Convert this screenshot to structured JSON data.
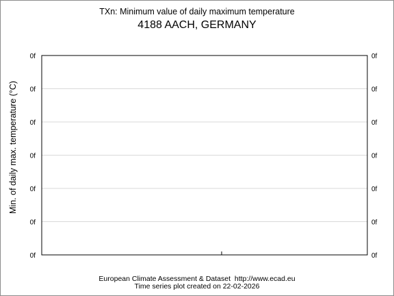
{
  "chart_data": {
    "type": "line",
    "title": "TXn: Minimum value of daily maximum temperature",
    "subtitle": "4188 AACH, GERMANY",
    "ylabel": "Min. of daily max. temperature (°C)",
    "xlabel": "",
    "y_tick_labels": [
      "0f",
      "0f",
      "0f",
      "0f",
      "0f",
      "0f",
      "0f"
    ],
    "grid": true,
    "series": [],
    "x": []
  },
  "footer": {
    "line1": "European Climate Assessment & Dataset  http://www.ecad.eu",
    "line2": "Time series plot created on 22-02-2026"
  }
}
